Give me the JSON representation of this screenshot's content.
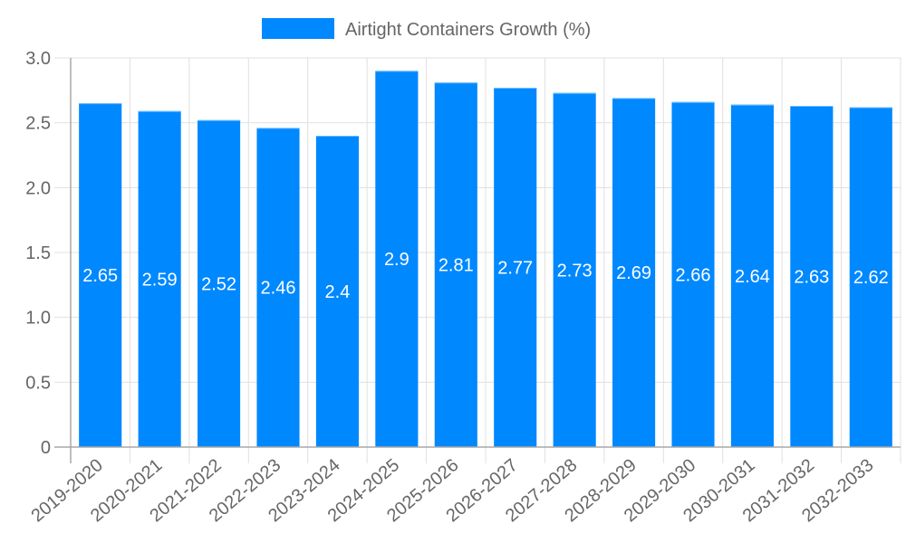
{
  "chart_data": {
    "type": "bar",
    "title": "",
    "xlabel": "",
    "ylabel": "",
    "categories": [
      "2019-2020",
      "2020-2021",
      "2021-2022",
      "2022-2023",
      "2023-2024",
      "2024-2025",
      "2025-2026",
      "2026-2027",
      "2027-2028",
      "2028-2029",
      "2029-2030",
      "2030-2031",
      "2031-2032",
      "2032-2033"
    ],
    "series": [
      {
        "name": "Airtight Containers Growth (%)",
        "color": "#0088ff",
        "border_color": "#66bbff",
        "values": [
          2.65,
          2.59,
          2.52,
          2.46,
          2.4,
          2.9,
          2.81,
          2.77,
          2.73,
          2.69,
          2.66,
          2.64,
          2.63,
          2.62
        ]
      }
    ],
    "ylim": [
      0,
      3.0
    ],
    "yticks": [
      0,
      0.5,
      1.0,
      1.5,
      2.0,
      2.5,
      3.0
    ],
    "ytick_labels": [
      "0",
      "0.5",
      "1.0",
      "1.5",
      "2.0",
      "2.5",
      "3.0"
    ],
    "grid": true,
    "legend_position": "top",
    "data_labels": true,
    "x_label_rotation": -40
  },
  "legend": {
    "label": "Airtight Containers Growth (%)",
    "color": "#0088ff"
  }
}
